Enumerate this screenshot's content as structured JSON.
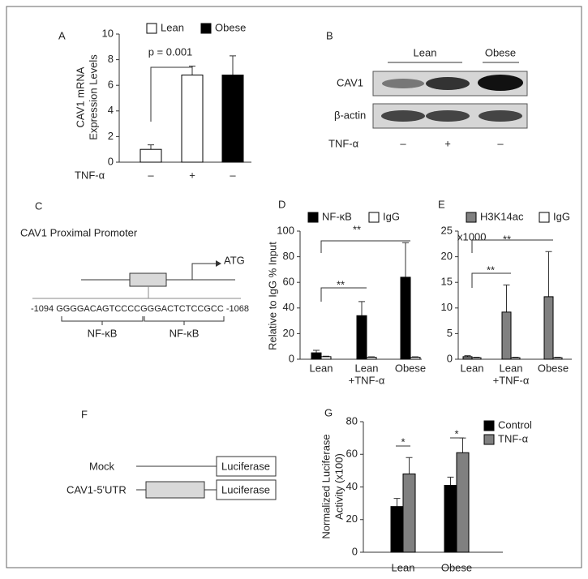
{
  "chart_data": [
    {
      "panel": "A",
      "type": "bar",
      "ylabel": [
        "CAV1 mRNA",
        "Expression Levels"
      ],
      "xlabel": "TNF-α",
      "categories": [
        "–",
        "+",
        "–"
      ],
      "series": [
        {
          "name": "Lean",
          "color": "#ffffff",
          "values": [
            1.0,
            6.8,
            null
          ],
          "errors": [
            0.35,
            0.7,
            null
          ]
        },
        {
          "name": "Obese",
          "color": "#000000",
          "values": [
            null,
            null,
            6.8
          ],
          "errors": [
            null,
            null,
            1.5
          ]
        }
      ],
      "ylim": [
        0,
        10
      ],
      "yticks": [
        0,
        2,
        4,
        6,
        8,
        10
      ],
      "annotations": [
        "p = 0.001"
      ]
    },
    {
      "panel": "D",
      "type": "bar",
      "ylabel": [
        "Relative to IgG % Input"
      ],
      "categories": [
        "Lean",
        [
          "Lean",
          "+TNF-α"
        ],
        "Obese"
      ],
      "series": [
        {
          "name": "NF-κB",
          "color": "#000000",
          "values": [
            5,
            34,
            64
          ],
          "errors": [
            2,
            11,
            27
          ]
        },
        {
          "name": "IgG",
          "color": "#ffffff",
          "values": [
            2,
            1.5,
            1.5
          ],
          "errors": [
            0.4,
            0.4,
            0.4
          ]
        }
      ],
      "ylim": [
        0,
        100
      ],
      "yticks": [
        0,
        20,
        40,
        60,
        80,
        100
      ],
      "annotations": [
        "**",
        "**"
      ]
    },
    {
      "panel": "E",
      "type": "bar",
      "unit_label": "x1000",
      "categories": [
        "Lean",
        [
          "Lean",
          "+TNF-α"
        ],
        "Obese"
      ],
      "series": [
        {
          "name": "H3K14ac",
          "color": "#808080",
          "values": [
            0.5,
            9.2,
            12.2
          ],
          "errors": [
            0.2,
            5.3,
            8.8
          ]
        },
        {
          "name": "IgG",
          "color": "#ffffff",
          "values": [
            0.3,
            0.3,
            0.3
          ],
          "errors": [
            0.1,
            0.1,
            0.1
          ]
        }
      ],
      "ylim": [
        0,
        25
      ],
      "yticks": [
        0,
        5,
        10,
        15,
        20,
        25
      ],
      "annotations": [
        "**",
        "**"
      ]
    },
    {
      "panel": "G",
      "type": "bar",
      "ylabel": [
        "Normalized Luciferase",
        "Activity (x100)"
      ],
      "categories": [
        "Lean",
        "Obese"
      ],
      "series": [
        {
          "name": "Control",
          "color": "#000000",
          "values": [
            28,
            41
          ],
          "errors": [
            5,
            5
          ]
        },
        {
          "name": "TNF-α",
          "color": "#808080",
          "values": [
            48,
            61
          ],
          "errors": [
            10,
            9
          ]
        }
      ],
      "ylim": [
        0,
        80
      ],
      "yticks": [
        0,
        20,
        40,
        60,
        80
      ],
      "annotations": [
        "*",
        "*"
      ]
    }
  ],
  "panels": {
    "B": {
      "letter": "B",
      "groups": [
        "Lean",
        "Obese"
      ],
      "rows": [
        "CAV1",
        "β-actin"
      ],
      "treatment_label": "TNF-α",
      "treatments": [
        "–",
        "+",
        "–"
      ]
    },
    "C": {
      "letter": "C",
      "title": "CAV1 Proximal Promoter",
      "start": "-1094",
      "seq1": "GGGGACAGTCCCC",
      "seq2": "GGGACTCTCCGCC",
      "end": "-1068",
      "sites": [
        "NF-κB",
        "NF-κB"
      ],
      "atg": "ATG"
    },
    "F": {
      "letter": "F",
      "constructs": [
        {
          "label": "Mock",
          "reporter": "Luciferase"
        },
        {
          "label": "CAV1-5'UTR",
          "reporter": "Luciferase"
        }
      ]
    }
  }
}
